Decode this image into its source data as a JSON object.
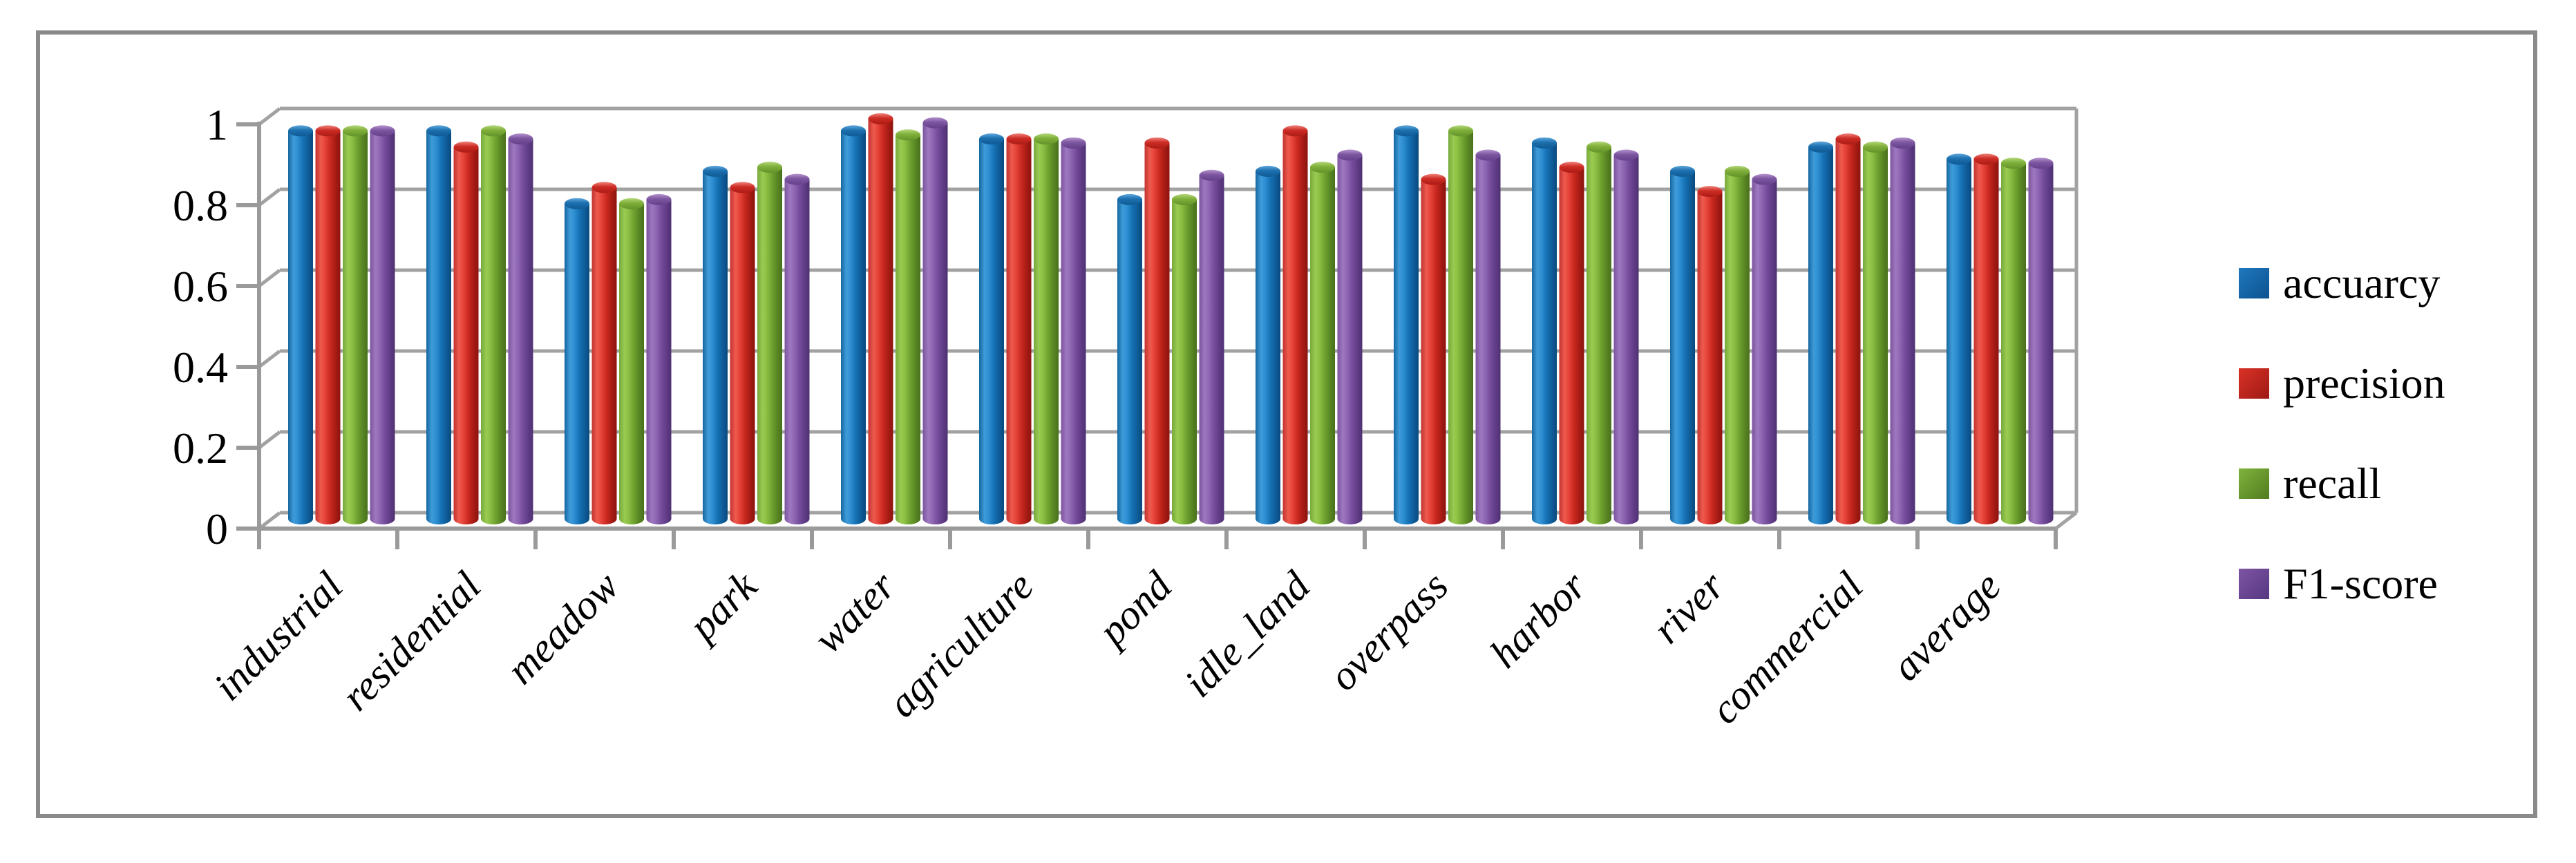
{
  "figure": {
    "type": "3d-cylinder-grouped-bar-chart",
    "background": "#ffffff",
    "border_color": "#8a8a8a"
  },
  "chart_data": {
    "type": "bar",
    "subtype": "3d-cylinder",
    "title": "",
    "xlabel": "",
    "ylabel": "",
    "ylim": [
      0,
      1
    ],
    "grid": true,
    "legend_position": "right",
    "y_tick_labels": [
      "1",
      "0.8",
      "0.6",
      "0.4",
      "0.2",
      "0"
    ],
    "y_tick_values": [
      1,
      0.8,
      0.6,
      0.4,
      0.2,
      0
    ],
    "categories": [
      "industrial",
      "residential",
      "meadow",
      "park",
      "water",
      "agriculture",
      "pond",
      "idle_land",
      "overpass",
      "harbor",
      "river",
      "commercial",
      "average"
    ],
    "series": [
      {
        "name": "accuarcy",
        "color": "#1f78be",
        "color_dark": "#0d5290",
        "values": [
          0.96,
          0.96,
          0.78,
          0.86,
          0.96,
          0.94,
          0.79,
          0.86,
          0.96,
          0.93,
          0.86,
          0.92,
          0.89
        ]
      },
      {
        "name": "precision",
        "color": "#d93227",
        "color_dark": "#9e1a13",
        "values": [
          0.96,
          0.92,
          0.82,
          0.82,
          0.99,
          0.94,
          0.93,
          0.96,
          0.84,
          0.87,
          0.81,
          0.94,
          0.89
        ]
      },
      {
        "name": "recall",
        "color": "#7fb33c",
        "color_dark": "#527c20",
        "values": [
          0.96,
          0.96,
          0.78,
          0.87,
          0.95,
          0.94,
          0.79,
          0.87,
          0.96,
          0.92,
          0.86,
          0.92,
          0.88
        ]
      },
      {
        "name": "F1-score",
        "color": "#7e55a4",
        "color_dark": "#563781",
        "values": [
          0.96,
          0.94,
          0.79,
          0.84,
          0.98,
          0.93,
          0.85,
          0.9,
          0.9,
          0.9,
          0.84,
          0.93,
          0.88
        ]
      }
    ]
  }
}
